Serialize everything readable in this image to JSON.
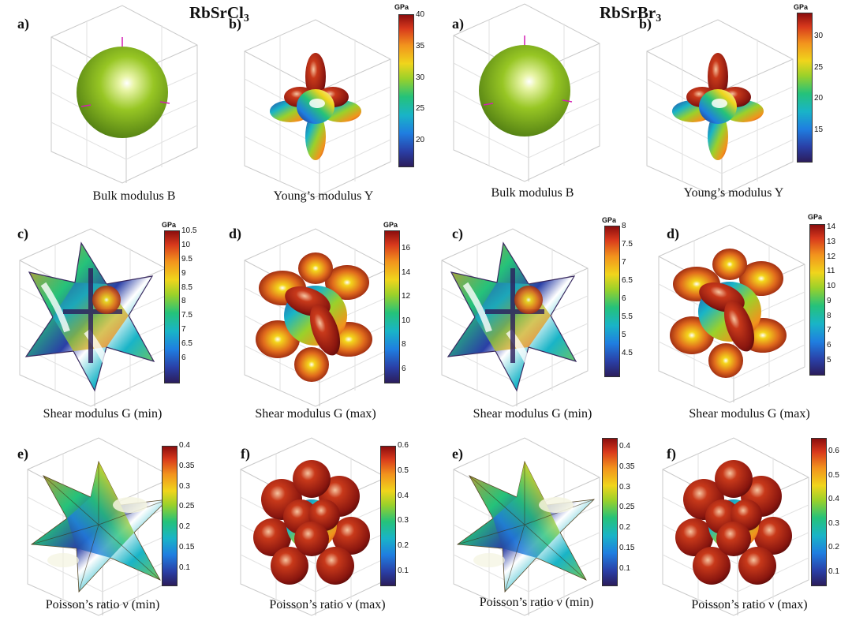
{
  "titles": {
    "left": {
      "main": "RbSrCl",
      "sub": "3"
    },
    "right": {
      "main": "RbSrBr",
      "sub": "3"
    }
  },
  "panel_letters": {
    "a": "a)",
    "b": "b)",
    "c": "c)",
    "d": "d)",
    "e": "e)",
    "f": "f)"
  },
  "captions": {
    "bulk": "Bulk modulus B",
    "young": "Young’s modulus Y",
    "shear_min": "Shear modulus G (min)",
    "shear_max": "Shear modulus G (max)",
    "poisson_min": "Poisson’s ratio ν (min)",
    "poisson_max": "Poisson’s ratio ν (max)"
  },
  "unit_label": "GPa",
  "colorbars": {
    "cl_young": [
      "40",
      "35",
      "30",
      "25",
      "20"
    ],
    "br_young": [
      "30",
      "25",
      "20",
      "15"
    ],
    "cl_shear_min": [
      "10.5",
      "10",
      "9.5",
      "9",
      "8.5",
      "8",
      "7.5",
      "7",
      "6.5",
      "6"
    ],
    "cl_shear_max": [
      "16",
      "14",
      "12",
      "10",
      "8",
      "6"
    ],
    "br_shear_min": [
      "8",
      "7.5",
      "7",
      "6.5",
      "6",
      "5.5",
      "5",
      "4.5"
    ],
    "br_shear_max": [
      "14",
      "13",
      "12",
      "11",
      "10",
      "9",
      "8",
      "7",
      "6",
      "5"
    ],
    "cl_poisson_min": [
      "0.4",
      "0.35",
      "0.3",
      "0.25",
      "0.2",
      "0.15",
      "0.1"
    ],
    "cl_poisson_max": [
      "0.6",
      "0.5",
      "0.4",
      "0.3",
      "0.2",
      "0.1"
    ],
    "br_poisson_min": [
      "0.4",
      "0.35",
      "0.3",
      "0.25",
      "0.2",
      "0.15",
      "0.1"
    ],
    "br_poisson_max": [
      "0.6",
      "0.5",
      "0.4",
      "0.3",
      "0.2",
      "0.1"
    ]
  },
  "colors": {
    "sphere": "#8fbe22",
    "crosshair": "#d31fb3",
    "box_line": "#c9c9c9"
  }
}
